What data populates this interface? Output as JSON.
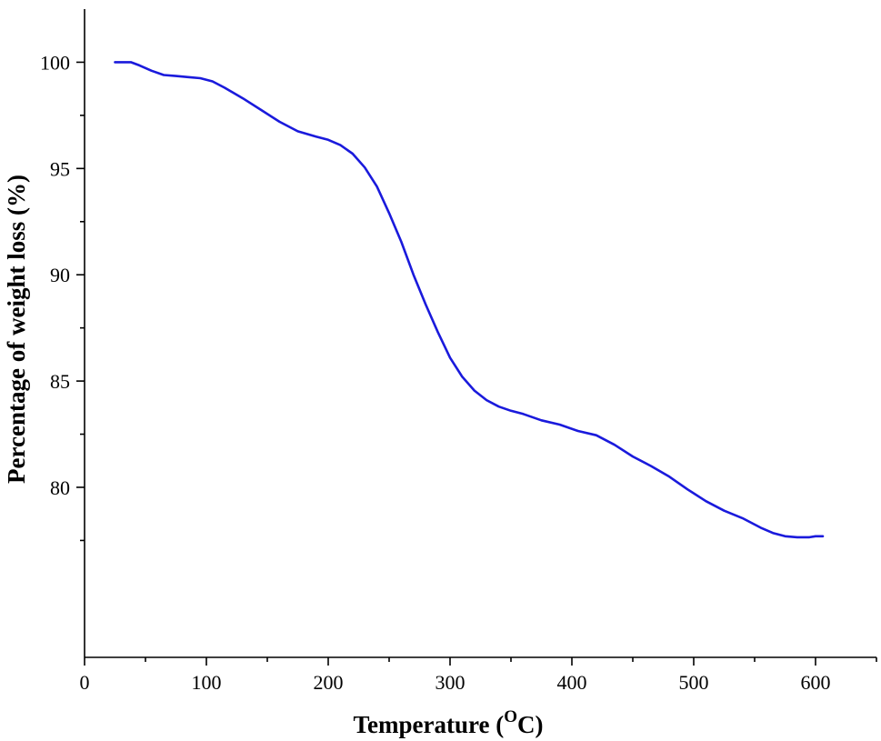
{
  "chart_data": {
    "type": "line",
    "title": "",
    "xlabel": "Temperature (",
    "xlabel_superscript": "O",
    "xlabel_suffix": "C)",
    "ylabel": "Percentage of weight loss (%)",
    "xlim": [
      0,
      650
    ],
    "ylim": [
      72,
      102.5
    ],
    "x_ticks": [
      0,
      100,
      200,
      300,
      400,
      500,
      600
    ],
    "x_tick_labels": [
      "0",
      "100",
      "200",
      "300",
      "400",
      "500",
      "600"
    ],
    "x_minor_ticks": [
      50,
      150,
      250,
      350,
      450,
      550,
      650
    ],
    "y_ticks": [
      80,
      85,
      90,
      95,
      100
    ],
    "y_tick_labels": [
      "80",
      "85",
      "90",
      "95",
      "100"
    ],
    "y_minor_ticks": [
      77.5,
      82.5,
      87.5,
      92.5,
      97.5
    ],
    "grid": false,
    "legend": "none",
    "series_color": "#1a1adc",
    "series": [
      {
        "x": [
          25,
          30,
          38,
          45,
          55,
          65,
          75,
          85,
          95,
          105,
          115,
          130,
          145,
          160,
          175,
          190,
          200,
          210,
          220,
          230,
          240,
          250,
          260,
          270,
          280,
          290,
          300,
          310,
          320,
          330,
          340,
          350,
          360,
          375,
          390,
          405,
          420,
          435,
          450,
          465,
          480,
          495,
          510,
          525,
          540,
          555,
          565,
          575,
          585,
          595,
          600,
          606
        ],
        "y": [
          100.0,
          100.0,
          100.0,
          99.85,
          99.6,
          99.4,
          99.35,
          99.3,
          99.25,
          99.1,
          98.8,
          98.3,
          97.75,
          97.2,
          96.75,
          96.5,
          96.35,
          96.1,
          95.7,
          95.05,
          94.15,
          92.9,
          91.55,
          90.0,
          88.6,
          87.3,
          86.1,
          85.2,
          84.55,
          84.1,
          83.8,
          83.6,
          83.45,
          83.15,
          82.95,
          82.65,
          82.45,
          82.0,
          81.45,
          81.0,
          80.5,
          79.9,
          79.35,
          78.9,
          78.55,
          78.1,
          77.85,
          77.7,
          77.65,
          77.65,
          77.7,
          77.7
        ]
      }
    ]
  }
}
